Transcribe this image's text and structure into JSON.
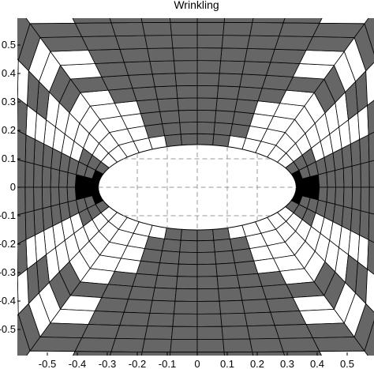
{
  "chart_data": {
    "type": "heatmap",
    "title": "Wrinkling",
    "xlabel": "",
    "ylabel": "",
    "xlim": [
      -0.6,
      0.6
    ],
    "ylim": [
      -0.6,
      0.6
    ],
    "xticks": [
      -0.5,
      -0.4,
      -0.3,
      -0.2,
      -0.1,
      0,
      0.1,
      0.2,
      0.3,
      0.4,
      0.5
    ],
    "yticks": [
      0.5,
      0.4,
      0.3,
      0.2,
      0.1,
      0,
      -0.1,
      -0.2,
      -0.3,
      -0.4,
      -0.5
    ],
    "xtick_labels": [
      "-0.5",
      "-0.4",
      "-0.3",
      "-0.2",
      "-0.1",
      "0",
      "0.1",
      "0.2",
      "0.3",
      "0.4",
      "0.5"
    ],
    "ytick_labels": [
      "0.5",
      "0.4",
      "0.3",
      "0.2",
      "0.1",
      "0",
      "-0.1",
      "-0.2",
      "-0.3",
      "-0.4",
      "-0.5"
    ],
    "hole": {
      "center": [
        0,
        0
      ],
      "semi_axis_x": 0.33,
      "semi_axis_y": 0.15
    },
    "hole_grid": {
      "x": [
        -0.2,
        -0.1,
        0,
        0.1,
        0.2
      ],
      "y": [
        -0.1,
        0,
        0.1
      ]
    },
    "mesh": {
      "radial_divisions": 11,
      "angular_divisions": 40
    },
    "legend": "none",
    "grid": false,
    "colors": {
      "wrinkled": "#666666",
      "taut": "#ffffff",
      "slack": "#000000",
      "mesh_line": "#000000",
      "hole_grid": "#999999"
    }
  }
}
